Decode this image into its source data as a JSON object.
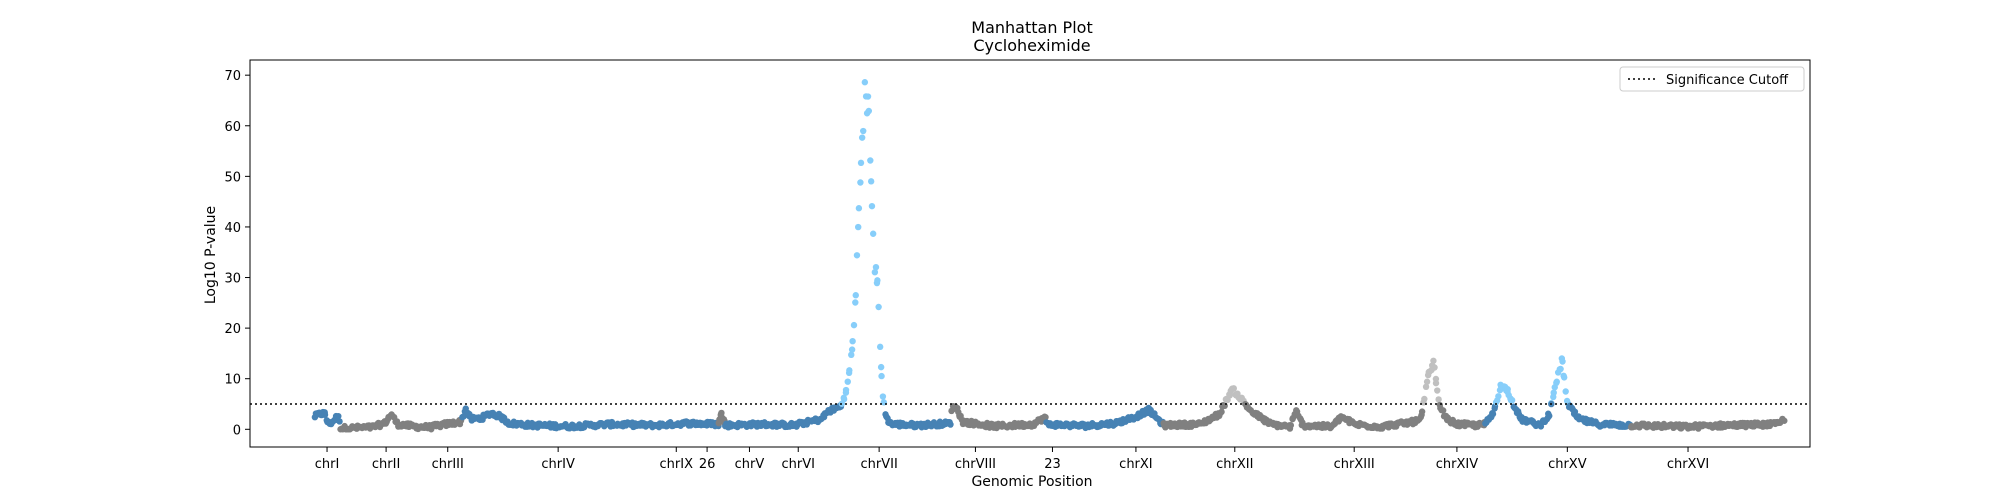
{
  "chart_data": {
    "type": "scatter",
    "title": "Manhattan Plot",
    "subtitle": "Cycloheximide",
    "xlabel": "Genomic Position",
    "ylabel": "Log10 P-value",
    "ylim": [
      -3.5,
      73
    ],
    "yticks": [
      0,
      10,
      20,
      30,
      40,
      50,
      60,
      70
    ],
    "grid": false,
    "legend": {
      "position": "top-right",
      "entries": [
        "Significance Cutoff"
      ]
    },
    "significance_cutoff": 5,
    "colors": {
      "dark": "#4682b4",
      "gray": "#808080",
      "dark_significant": "#87cefa",
      "gray_significant": "#c0c0c0",
      "cutoff_line": "#000000"
    },
    "chromosomes": [
      {
        "label": "chrI",
        "start": 0.0,
        "end": 0.02,
        "color": "dark",
        "profile": [
          [
            0.0,
            2.5
          ],
          [
            0.004,
            3.0
          ],
          [
            0.008,
            3.2
          ],
          [
            0.011,
            1.0
          ],
          [
            0.015,
            1.6
          ],
          [
            0.018,
            2.6
          ],
          [
            0.02,
            1.8
          ]
        ]
      },
      {
        "label": "chrII",
        "start": 0.02,
        "end": 0.092,
        "color": "gray",
        "profile": [
          [
            0.02,
            0.2
          ],
          [
            0.045,
            0.4
          ],
          [
            0.055,
            1.2
          ],
          [
            0.06,
            3.0
          ],
          [
            0.065,
            1.0
          ],
          [
            0.08,
            0.5
          ],
          [
            0.092,
            0.4
          ]
        ]
      },
      {
        "label": "chrIII",
        "start": 0.092,
        "end": 0.115,
        "color": "gray",
        "profile": [
          [
            0.092,
            0.5
          ],
          [
            0.1,
            0.9
          ],
          [
            0.11,
            1.3
          ],
          [
            0.115,
            1.5
          ]
        ]
      },
      {
        "label": "chrIV",
        "start": 0.115,
        "end": 0.267,
        "color": "dark",
        "profile": [
          [
            0.115,
            2.0
          ],
          [
            0.118,
            4.0
          ],
          [
            0.122,
            2.0
          ],
          [
            0.13,
            2.2
          ],
          [
            0.138,
            3.2
          ],
          [
            0.145,
            2.5
          ],
          [
            0.152,
            1.2
          ],
          [
            0.17,
            0.8
          ],
          [
            0.2,
            0.6
          ],
          [
            0.23,
            1.0
          ],
          [
            0.267,
            0.8
          ]
        ]
      },
      {
        "label": "chrIX",
        "start": 0.267,
        "end": 0.315,
        "color": "dark",
        "profile": [
          [
            0.267,
            0.8
          ],
          [
            0.29,
            1.2
          ],
          [
            0.315,
            1.0
          ]
        ]
      },
      {
        "label": "26",
        "start": 0.315,
        "end": 0.32,
        "color": "gray",
        "profile": [
          [
            0.315,
            1.0
          ],
          [
            0.317,
            3.0
          ],
          [
            0.32,
            1.2
          ]
        ]
      },
      {
        "label": "chrV",
        "start": 0.32,
        "end": 0.377,
        "color": "dark",
        "profile": [
          [
            0.32,
            0.8
          ],
          [
            0.35,
            1.0
          ],
          [
            0.377,
            0.8
          ]
        ]
      },
      {
        "label": "chrVI",
        "start": 0.377,
        "end": 0.4,
        "color": "dark",
        "profile": [
          [
            0.377,
            1.0
          ],
          [
            0.395,
            2.0
          ],
          [
            0.4,
            3.5
          ]
        ]
      },
      {
        "label": "chrVII",
        "start": 0.4,
        "end": 0.496,
        "color": "dark",
        "profile": [
          [
            0.4,
            3.5
          ],
          [
            0.41,
            4.5
          ],
          [
            0.415,
            8.0
          ],
          [
            0.42,
            18.0
          ],
          [
            0.424,
            40.0
          ],
          [
            0.427,
            60.0
          ],
          [
            0.43,
            68.0
          ],
          [
            0.433,
            57.0
          ],
          [
            0.436,
            33.0
          ],
          [
            0.439,
            28.0
          ],
          [
            0.441,
            15.0
          ],
          [
            0.443,
            6.0
          ],
          [
            0.446,
            2.0
          ],
          [
            0.45,
            1.0
          ],
          [
            0.47,
            0.8
          ],
          [
            0.496,
            1.2
          ]
        ]
      },
      {
        "label": "chrVIII",
        "start": 0.496,
        "end": 0.57,
        "color": "gray",
        "profile": [
          [
            0.496,
            4.0
          ],
          [
            0.5,
            4.5
          ],
          [
            0.505,
            1.5
          ],
          [
            0.53,
            0.6
          ],
          [
            0.56,
            1.0
          ],
          [
            0.57,
            2.5
          ]
        ]
      },
      {
        "label": "23",
        "start": 0.57,
        "end": 0.624,
        "color": "dark",
        "profile": [
          [
            0.57,
            1.0
          ],
          [
            0.6,
            0.7
          ],
          [
            0.624,
            1.2
          ]
        ]
      },
      {
        "label": "chrXI",
        "start": 0.624,
        "end": 0.661,
        "color": "dark",
        "profile": [
          [
            0.624,
            1.2
          ],
          [
            0.64,
            2.5
          ],
          [
            0.65,
            3.8
          ],
          [
            0.661,
            1.0
          ]
        ]
      },
      {
        "label": "chrXII",
        "start": 0.661,
        "end": 0.793,
        "color": "gray",
        "profile": [
          [
            0.661,
            0.8
          ],
          [
            0.69,
            1.0
          ],
          [
            0.705,
            3.0
          ],
          [
            0.715,
            8.0
          ],
          [
            0.722,
            6.0
          ],
          [
            0.73,
            3.5
          ],
          [
            0.745,
            1.0
          ],
          [
            0.76,
            0.5
          ],
          [
            0.765,
            3.5
          ],
          [
            0.77,
            0.8
          ],
          [
            0.793,
            0.5
          ]
        ]
      },
      {
        "label": "chrXIII",
        "start": 0.793,
        "end": 0.857,
        "color": "gray",
        "profile": [
          [
            0.793,
            0.5
          ],
          [
            0.8,
            2.5
          ],
          [
            0.81,
            1.0
          ],
          [
            0.83,
            0.5
          ],
          [
            0.857,
            1.5
          ]
        ]
      },
      {
        "label": "chrXIV",
        "start": 0.857,
        "end": 0.912,
        "color": "gray",
        "profile": [
          [
            0.857,
            1.5
          ],
          [
            0.862,
            2.0
          ],
          [
            0.868,
            11.0
          ],
          [
            0.872,
            13.0
          ],
          [
            0.876,
            5.0
          ],
          [
            0.882,
            2.0
          ],
          [
            0.89,
            1.0
          ],
          [
            0.905,
            0.8
          ],
          [
            0.912,
            1.0
          ]
        ]
      },
      {
        "label": "chrXV",
        "start": 0.912,
        "end": 1.025,
        "color": "dark",
        "profile": [
          [
            0.912,
            1.0
          ],
          [
            0.918,
            3.0
          ],
          [
            0.924,
            8.5
          ],
          [
            0.929,
            8.0
          ],
          [
            0.934,
            5.0
          ],
          [
            0.94,
            2.0
          ],
          [
            0.955,
            0.8
          ],
          [
            0.962,
            3.0
          ],
          [
            0.968,
            10.0
          ],
          [
            0.972,
            13.5
          ],
          [
            0.976,
            5.0
          ],
          [
            0.985,
            2.0
          ],
          [
            1.0,
            1.0
          ],
          [
            1.025,
            0.8
          ]
        ]
      },
      {
        "label": "chrXVI",
        "start": 1.025,
        "end": 1.145,
        "color": "gray",
        "profile": [
          [
            1.025,
            0.8
          ],
          [
            1.07,
            0.5
          ],
          [
            1.1,
            0.8
          ],
          [
            1.14,
            1.0
          ],
          [
            1.145,
            2.0
          ]
        ]
      }
    ],
    "xtick_labels": [
      {
        "label": "chrI",
        "pos": 0.01
      },
      {
        "label": "chrII",
        "pos": 0.056
      },
      {
        "label": "chrIII",
        "pos": 0.104
      },
      {
        "label": "chrIV",
        "pos": 0.19
      },
      {
        "label": "chrIX",
        "pos": 0.282
      },
      {
        "label": "26",
        "pos": 0.306
      },
      {
        "label": "chrV",
        "pos": 0.339
      },
      {
        "label": "chrVI",
        "pos": 0.377
      },
      {
        "label": "chrVII",
        "pos": 0.44
      },
      {
        "label": "chrVIII",
        "pos": 0.515
      },
      {
        "label": "23",
        "pos": 0.575
      },
      {
        "label": "chrXI",
        "pos": 0.64
      },
      {
        "label": "chrXII",
        "pos": 0.717
      },
      {
        "label": "chrXIII",
        "pos": 0.81
      },
      {
        "label": "chrXIV",
        "pos": 0.89
      },
      {
        "label": "chrXV",
        "pos": 0.976
      },
      {
        "label": "chrXVI",
        "pos": 1.07
      }
    ],
    "xlim": [
      -0.05,
      1.165
    ]
  }
}
